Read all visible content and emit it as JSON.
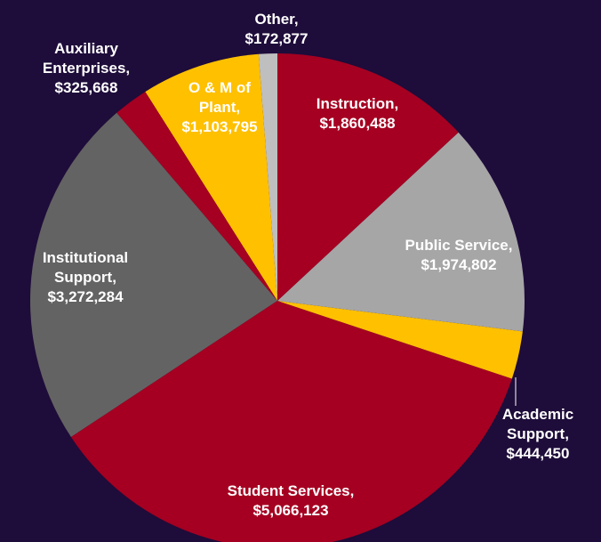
{
  "chart_data": {
    "type": "pie",
    "categories": [
      "Instruction,",
      "Public Service,",
      "Academic Support,",
      "Student Services,",
      "Institutional Support,",
      "Auxiliary Enterprises,",
      "O & M of Plant,",
      "Other,"
    ],
    "values": [
      1860488,
      1974802,
      444450,
      5066123,
      3272284,
      325668,
      1103795,
      172877
    ],
    "value_labels": [
      "$1,860,488",
      "$1,974,802",
      "$444,450",
      "$5,066,123",
      "$3,272,284",
      "$325,668",
      "$1,103,795",
      "$172,877"
    ],
    "colors": [
      "#a50021",
      "#a6a6a6",
      "#ffc000",
      "#a50021",
      "#636363",
      "#a50021",
      "#ffc000",
      "#bfbfbf"
    ]
  }
}
